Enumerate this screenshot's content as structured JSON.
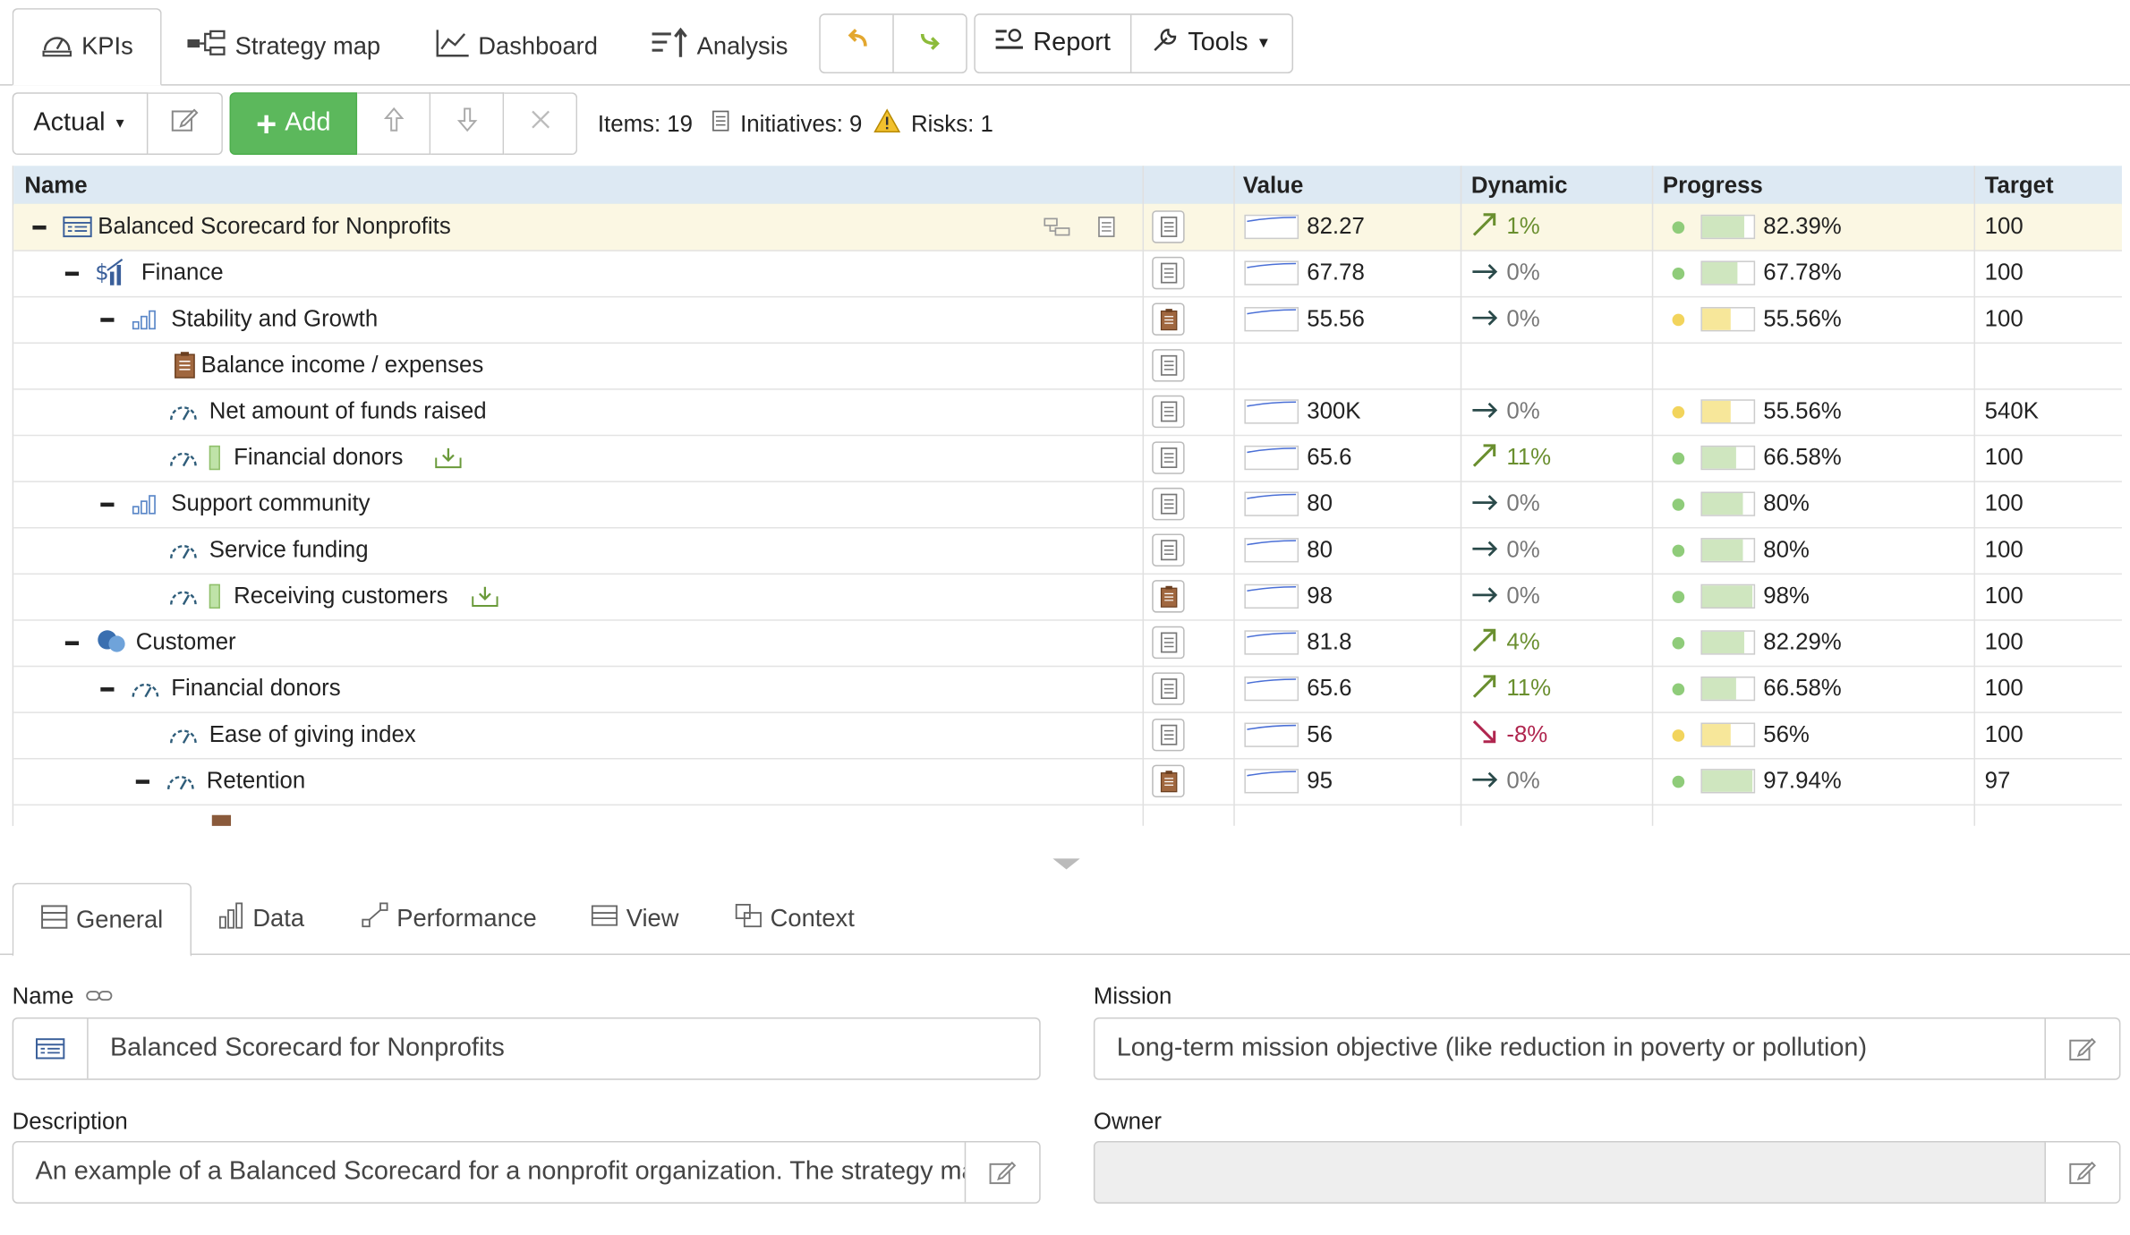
{
  "top_tabs": {
    "kpis": "KPIs",
    "strategy_map": "Strategy map",
    "dashboard": "Dashboard",
    "analysis": "Analysis",
    "report": "Report",
    "tools": "Tools"
  },
  "toolbar": {
    "scenario": "Actual",
    "add": "Add",
    "items": "Items: 19",
    "initiatives": "Initiatives: 9",
    "risks": "Risks: 1"
  },
  "grid": {
    "columns": {
      "name": "Name",
      "value": "Value",
      "dynamic": "Dynamic",
      "progress": "Progress",
      "target": "Target"
    },
    "rows": [
      {
        "name": "Balanced Scorecard for Nonprofits",
        "value": "82.27",
        "dynamic": "1%",
        "dyn_dir": "up",
        "progress": "82.39%",
        "status": "green",
        "target": "100"
      },
      {
        "name": "Finance",
        "value": "67.78",
        "dynamic": "0%",
        "dyn_dir": "flat",
        "progress": "67.78%",
        "status": "green",
        "target": "100"
      },
      {
        "name": "Stability and Growth",
        "value": "55.56",
        "dynamic": "0%",
        "dyn_dir": "flat",
        "progress": "55.56%",
        "status": "yellow",
        "target": "100"
      },
      {
        "name": "Balance income / expenses",
        "value": "",
        "dynamic": "",
        "dyn_dir": "",
        "progress": "",
        "status": "",
        "target": ""
      },
      {
        "name": "Net amount of funds raised",
        "value": "300K",
        "dynamic": "0%",
        "dyn_dir": "flat",
        "progress": "55.56%",
        "status": "yellow",
        "target": "540K"
      },
      {
        "name": "Financial donors",
        "value": "65.6",
        "dynamic": "11%",
        "dyn_dir": "up",
        "progress": "66.58%",
        "status": "green",
        "target": "100"
      },
      {
        "name": "Support community",
        "value": "80",
        "dynamic": "0%",
        "dyn_dir": "flat",
        "progress": "80%",
        "status": "green",
        "target": "100"
      },
      {
        "name": "Service funding",
        "value": "80",
        "dynamic": "0%",
        "dyn_dir": "flat",
        "progress": "80%",
        "status": "green",
        "target": "100"
      },
      {
        "name": "Receiving customers",
        "value": "98",
        "dynamic": "0%",
        "dyn_dir": "flat",
        "progress": "98%",
        "status": "green",
        "target": "100"
      },
      {
        "name": "Customer",
        "value": "81.8",
        "dynamic": "4%",
        "dyn_dir": "up",
        "progress": "82.29%",
        "status": "green",
        "target": "100"
      },
      {
        "name": "Financial donors",
        "value": "65.6",
        "dynamic": "11%",
        "dyn_dir": "up",
        "progress": "66.58%",
        "status": "green",
        "target": "100"
      },
      {
        "name": "Ease of giving index",
        "value": "56",
        "dynamic": "-8%",
        "dyn_dir": "down",
        "progress": "56%",
        "status": "yellow",
        "target": "100"
      },
      {
        "name": "Retention",
        "value": "95",
        "dynamic": "0%",
        "dyn_dir": "flat",
        "progress": "97.94%",
        "status": "green",
        "target": "97"
      }
    ]
  },
  "bottom_tabs": {
    "general": "General",
    "data": "Data",
    "performance": "Performance",
    "view": "View",
    "context": "Context"
  },
  "form": {
    "name_label": "Name",
    "name_value": "Balanced Scorecard for Nonprofits",
    "mission_label": "Mission",
    "mission_value": "Long-term mission objective (like reduction in poverty or pollution)",
    "description_label": "Description",
    "description_value": "An example of a Balanced Scorecard for a nonprofit organization. The strategy map",
    "owner_label": "Owner",
    "owner_value": ""
  },
  "colors": {
    "green_status": "#8fcc7a",
    "yellow_status": "#f2d45c",
    "add_button": "#5cb85c",
    "header_bg": "#dde9f3",
    "selected_row": "#fbf7e3"
  }
}
